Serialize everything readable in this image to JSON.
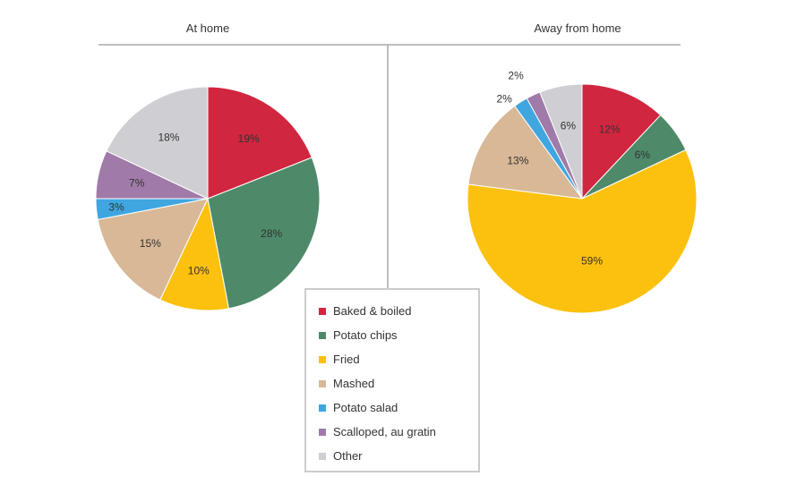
{
  "chart_data": [
    {
      "type": "pie",
      "title": "At home",
      "categories": [
        "Baked & boiled",
        "Potato chips",
        "Fried",
        "Mashed",
        "Potato salad",
        "Scalloped, au gratin",
        "Other"
      ],
      "values": [
        19,
        28,
        10,
        15,
        3,
        7,
        18
      ],
      "labels": [
        "19%",
        "28%",
        "10%",
        "15%",
        "3%",
        "7%",
        "18%"
      ]
    },
    {
      "type": "pie",
      "title": "Away from home",
      "categories": [
        "Baked & boiled",
        "Potato chips",
        "Fried",
        "Mashed",
        "Potato salad",
        "Scalloped, au gratin",
        "Other"
      ],
      "values": [
        12,
        6,
        59,
        13,
        2,
        2,
        6
      ],
      "labels": [
        "12%",
        "6%",
        "59%",
        "13%",
        "2%",
        "2%",
        "6%"
      ]
    }
  ],
  "legend": {
    "placement": "bottom-center",
    "items": [
      "Baked & boiled",
      "Potato chips",
      "Fried",
      "Mashed",
      "Potato salad",
      "Scalloped, au gratin",
      "Other"
    ]
  },
  "colors": [
    "#d0263f",
    "#4e8a6a",
    "#fcc10e",
    "#d8b896",
    "#3fa6e0",
    "#a07aa8",
    "#cfcfd3"
  ]
}
